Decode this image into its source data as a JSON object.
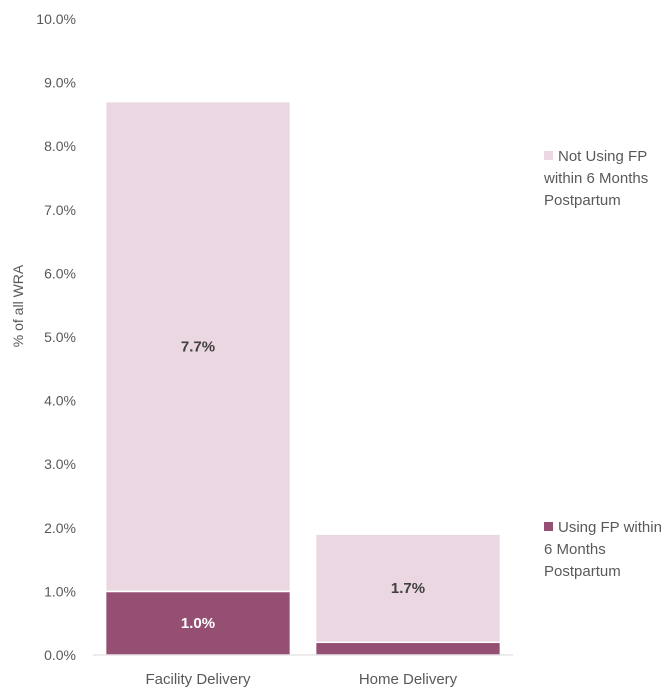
{
  "chart_data": {
    "type": "bar",
    "stacked": true,
    "categories": [
      "Facility Delivery",
      "Home Delivery"
    ],
    "series": [
      {
        "name": "Using FP within 6 Months Postpartum",
        "values": [
          1.0,
          0.2
        ],
        "labels": [
          "1.0%",
          ""
        ],
        "color": "#954F72",
        "label_color": "#ffffff"
      },
      {
        "name": "Not Using FP within 6 Months Postpartum",
        "values": [
          7.7,
          1.7
        ],
        "labels": [
          "7.7%",
          "1.7%"
        ],
        "color": "#EAD7E1",
        "label_color": "#404040"
      }
    ],
    "xlabel": "",
    "ylabel": "% of all WRA",
    "ylim": [
      0,
      10
    ],
    "yticks": [
      "0.0%",
      "1.0%",
      "2.0%",
      "3.0%",
      "4.0%",
      "5.0%",
      "6.0%",
      "7.0%",
      "8.0%",
      "9.0%",
      "10.0%"
    ],
    "grid": false,
    "legend_position": "right"
  }
}
